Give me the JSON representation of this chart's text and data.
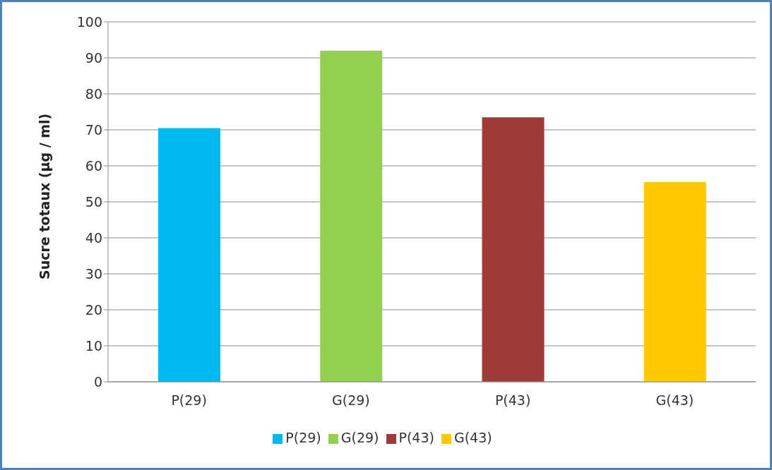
{
  "chart_data": {
    "type": "bar",
    "ylabel": "Sucre totaux (µg / ml)",
    "categories": [
      "P(29)",
      "G(29)",
      "P(43)",
      "G(43)"
    ],
    "series": [
      {
        "name": "P(29)",
        "color": "#00b8f0",
        "values": [
          70.5,
          null,
          null,
          null
        ]
      },
      {
        "name": "G(29)",
        "color": "#92d050",
        "values": [
          null,
          92,
          null,
          null
        ]
      },
      {
        "name": "P(43)",
        "color": "#9e3a38",
        "values": [
          null,
          null,
          73.5,
          null
        ]
      },
      {
        "name": "G(43)",
        "color": "#ffc800",
        "values": [
          null,
          null,
          null,
          55.5
        ]
      }
    ],
    "stacked": true,
    "ylim": [
      0,
      100
    ],
    "yticks": [
      0,
      10,
      20,
      30,
      40,
      50,
      60,
      70,
      80,
      90,
      100
    ],
    "grid": "y",
    "legend": "bottom"
  }
}
